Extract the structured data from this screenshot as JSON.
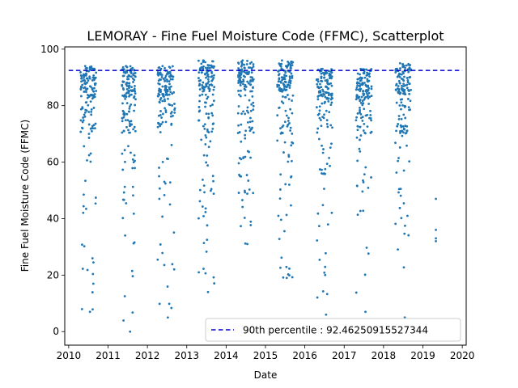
{
  "chart_data": {
    "type": "scatter",
    "title": "LEMORAY - Fine Fuel Moisture Code (FFMC), Scatterplot",
    "xlabel": "Date",
    "ylabel": "Fine Fuel Moisture Code (FFMC)",
    "xlim": [
      2009.9,
      2020.1
    ],
    "ylim": [
      -4.8,
      100.8
    ],
    "xticks": [
      2010,
      2011,
      2012,
      2013,
      2014,
      2015,
      2016,
      2017,
      2018,
      2019,
      2020
    ],
    "yticks": [
      0,
      20,
      40,
      60,
      80,
      100
    ],
    "grid": false,
    "legend_position": "lower-right",
    "point_color": "#1f77b4",
    "threshold_color": "#0000cc",
    "threshold": {
      "label": "90th percentile : 92.46250915527344",
      "value": 92.46250915527344,
      "x_range": [
        2010,
        2020
      ]
    },
    "season_clusters": [
      {
        "x_range": [
          2010.3,
          2010.7
        ],
        "y_min": 7,
        "y_max": 94
      },
      {
        "x_range": [
          2011.35,
          2011.7
        ],
        "y_min": 0,
        "y_max": 94
      },
      {
        "x_range": [
          2012.25,
          2012.7
        ],
        "y_min": 5,
        "y_max": 94
      },
      {
        "x_range": [
          2013.3,
          2013.7
        ],
        "y_min": 14,
        "y_max": 96
      },
      {
        "x_range": [
          2014.3,
          2014.7
        ],
        "y_min": 31,
        "y_max": 96
      },
      {
        "x_range": [
          2015.3,
          2015.7
        ],
        "y_min": 19,
        "y_max": 96
      },
      {
        "x_range": [
          2016.3,
          2016.7
        ],
        "y_min": 6,
        "y_max": 93
      },
      {
        "x_range": [
          2017.3,
          2017.7
        ],
        "y_min": 7,
        "y_max": 93
      },
      {
        "x_range": [
          2018.3,
          2018.7
        ],
        "y_min": 5,
        "y_max": 95
      }
    ],
    "extra_points": [
      {
        "x": 2019.33,
        "y": 47
      },
      {
        "x": 2019.33,
        "y": 36
      },
      {
        "x": 2019.33,
        "y": 33
      },
      {
        "x": 2019.33,
        "y": 32
      }
    ]
  }
}
